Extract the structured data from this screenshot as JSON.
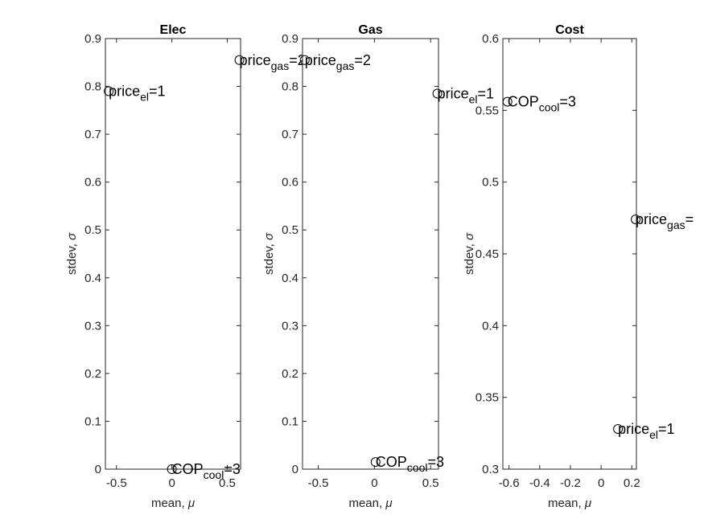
{
  "chart_data": [
    {
      "type": "scatter",
      "title": "Elec",
      "xlabel": "mean, ",
      "xlabel_sym": "μ",
      "ylabel": "stdev, ",
      "ylabel_sym": "σ",
      "xlim": [
        -0.6,
        0.62
      ],
      "ylim": [
        0,
        0.9
      ],
      "xticks": [
        -0.5,
        0,
        0.5
      ],
      "xtick_labels": [
        "-0.5",
        "0",
        "0.5"
      ],
      "yticks": [
        0,
        0.1,
        0.2,
        0.3,
        0.4,
        0.5,
        0.6,
        0.7,
        0.8,
        0.9
      ],
      "ytick_labels": [
        "0",
        "0.1",
        "0.2",
        "0.3",
        "0.4",
        "0.5",
        "0.6",
        "0.7",
        "0.8",
        "0.9"
      ],
      "points": [
        {
          "x": -0.57,
          "y": 0.79,
          "label": "price",
          "sub": "el",
          "suffix": "=1"
        },
        {
          "x": 0.61,
          "y": 0.855,
          "label": "price",
          "sub": "gas",
          "suffix": "=2"
        },
        {
          "x": 0.0,
          "y": 0.0,
          "label": "COP",
          "sub": "cool",
          "suffix": "=3"
        }
      ]
    },
    {
      "type": "scatter",
      "title": "Gas",
      "xlabel": "mean, ",
      "xlabel_sym": "μ",
      "ylabel": "stdev, ",
      "ylabel_sym": "σ",
      "xlim": [
        -0.64,
        0.57
      ],
      "ylim": [
        0,
        0.9
      ],
      "xticks": [
        -0.5,
        0,
        0.5
      ],
      "xtick_labels": [
        "-0.5",
        "0",
        "0.5"
      ],
      "yticks": [
        0,
        0.1,
        0.2,
        0.3,
        0.4,
        0.5,
        0.6,
        0.7,
        0.8,
        0.9
      ],
      "ytick_labels": [
        "0",
        "0.1",
        "0.2",
        "0.3",
        "0.4",
        "0.5",
        "0.6",
        "0.7",
        "0.8",
        "0.9"
      ],
      "points": [
        {
          "x": -0.62,
          "y": 0.855,
          "label": "price",
          "sub": "gas",
          "suffix": "=2"
        },
        {
          "x": 0.56,
          "y": 0.785,
          "label": "price",
          "sub": "el",
          "suffix": "=1"
        },
        {
          "x": 0.01,
          "y": 0.015,
          "label": "COP",
          "sub": "cool",
          "suffix": "=3"
        }
      ]
    },
    {
      "type": "scatter",
      "title": "Cost",
      "xlabel": "mean, ",
      "xlabel_sym": "μ",
      "ylabel": "stdev, ",
      "ylabel_sym": "σ",
      "xlim": [
        -0.64,
        0.23
      ],
      "ylim": [
        0.3,
        0.6
      ],
      "xticks": [
        -0.6,
        -0.4,
        -0.2,
        0,
        0.2
      ],
      "xtick_labels": [
        "-0.6",
        "-0.4",
        "-0.2",
        "0",
        "0.2"
      ],
      "yticks": [
        0.3,
        0.35,
        0.4,
        0.45,
        0.5,
        0.55,
        0.6
      ],
      "ytick_labels": [
        "0.3",
        "0.35",
        "0.4",
        "0.45",
        "0.5",
        "0.55",
        "0.6"
      ],
      "points": [
        {
          "x": -0.61,
          "y": 0.556,
          "label": "COP",
          "sub": "cool",
          "suffix": "=3"
        },
        {
          "x": 0.225,
          "y": 0.474,
          "label": "price",
          "sub": "gas",
          "suffix": "="
        },
        {
          "x": 0.11,
          "y": 0.328,
          "label": "price",
          "sub": "el",
          "suffix": "=1"
        }
      ]
    }
  ]
}
